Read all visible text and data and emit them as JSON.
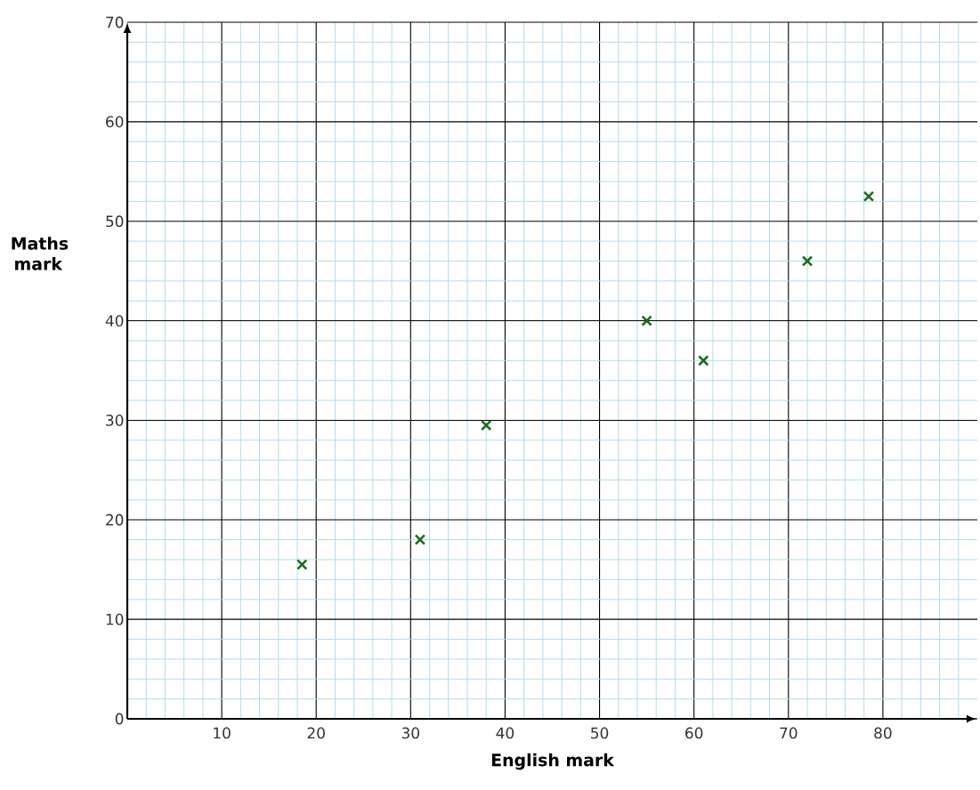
{
  "chart_data": {
    "type": "scatter",
    "xlabel": "English mark",
    "ylabel": "Maths mark",
    "x": [
      18.5,
      31,
      38,
      55,
      61,
      72,
      78.5
    ],
    "series": [
      {
        "color": "#1a6e1a",
        "values": [
          15.5,
          18,
          29.5,
          40,
          36,
          46,
          52.5
        ]
      }
    ],
    "xlim": [
      0,
      90
    ],
    "ylim": [
      0,
      70
    ],
    "xticks": [
      {
        "value": 2,
        "label": null
      },
      {
        "value": 4,
        "label": null
      },
      {
        "value": 6,
        "label": null
      },
      {
        "value": 8,
        "label": null
      },
      10,
      {
        "value": 12,
        "label": null
      },
      {
        "value": 14,
        "label": null
      },
      {
        "value": 16,
        "label": null
      },
      {
        "value": 18,
        "label": null
      },
      20,
      {
        "value": 22,
        "label": null
      },
      {
        "value": 24,
        "label": null
      },
      {
        "value": 26,
        "label": null
      },
      {
        "value": 28,
        "label": null
      },
      30,
      {
        "value": 32,
        "label": null
      },
      {
        "value": 34,
        "label": null
      },
      {
        "value": 36,
        "label": null
      },
      {
        "value": 38,
        "label": null
      },
      40,
      {
        "value": 42,
        "label": null
      },
      {
        "value": 44,
        "label": null
      },
      {
        "value": 46,
        "label": null
      },
      {
        "value": 48,
        "label": null
      },
      50,
      {
        "value": 52,
        "label": null
      },
      {
        "value": 54,
        "label": null
      },
      {
        "value": 56,
        "label": null
      },
      {
        "value": 58,
        "label": null
      },
      60,
      {
        "value": 62,
        "label": null
      },
      {
        "value": 64,
        "label": null
      },
      {
        "value": 66,
        "label": null
      },
      {
        "value": 68,
        "label": null
      },
      70,
      {
        "value": 72,
        "label": null
      },
      {
        "value": 74,
        "label": null
      },
      {
        "value": 76,
        "label": null
      },
      {
        "value": 78,
        "label": null
      },
      80,
      {
        "value": 82,
        "label": null
      },
      {
        "value": 84,
        "label": null
      },
      {
        "value": 86,
        "label": null
      },
      {
        "value": 88,
        "label": null
      }
    ],
    "yticks": [
      0,
      {
        "value": 2,
        "label": null
      },
      {
        "value": 4,
        "label": null
      },
      {
        "value": 6,
        "label": null
      },
      {
        "value": 8,
        "label": null
      },
      10,
      {
        "value": 12,
        "label": null
      },
      {
        "value": 14,
        "label": null
      },
      {
        "value": 16,
        "label": null
      },
      {
        "value": 18,
        "label": null
      },
      20,
      {
        "value": 22,
        "label": null
      },
      {
        "value": 24,
        "label": null
      },
      {
        "value": 26,
        "label": null
      },
      {
        "value": 28,
        "label": null
      },
      30,
      {
        "value": 32,
        "label": null
      },
      {
        "value": 34,
        "label": null
      },
      {
        "value": 36,
        "label": null
      },
      {
        "value": 38,
        "label": null
      },
      40,
      {
        "value": 42,
        "label": null
      },
      {
        "value": 44,
        "label": null
      },
      {
        "value": 46,
        "label": null
      },
      {
        "value": 48,
        "label": null
      },
      50,
      {
        "value": 52,
        "label": null
      },
      {
        "value": 54,
        "label": null
      },
      {
        "value": 56,
        "label": null
      },
      {
        "value": 58,
        "label": null
      },
      60,
      {
        "value": 62,
        "label": null
      },
      {
        "value": 64,
        "label": null
      },
      {
        "value": 66,
        "label": null
      },
      {
        "value": 68,
        "label": null
      },
      70
    ],
    "grid": true,
    "marker": "cross"
  }
}
